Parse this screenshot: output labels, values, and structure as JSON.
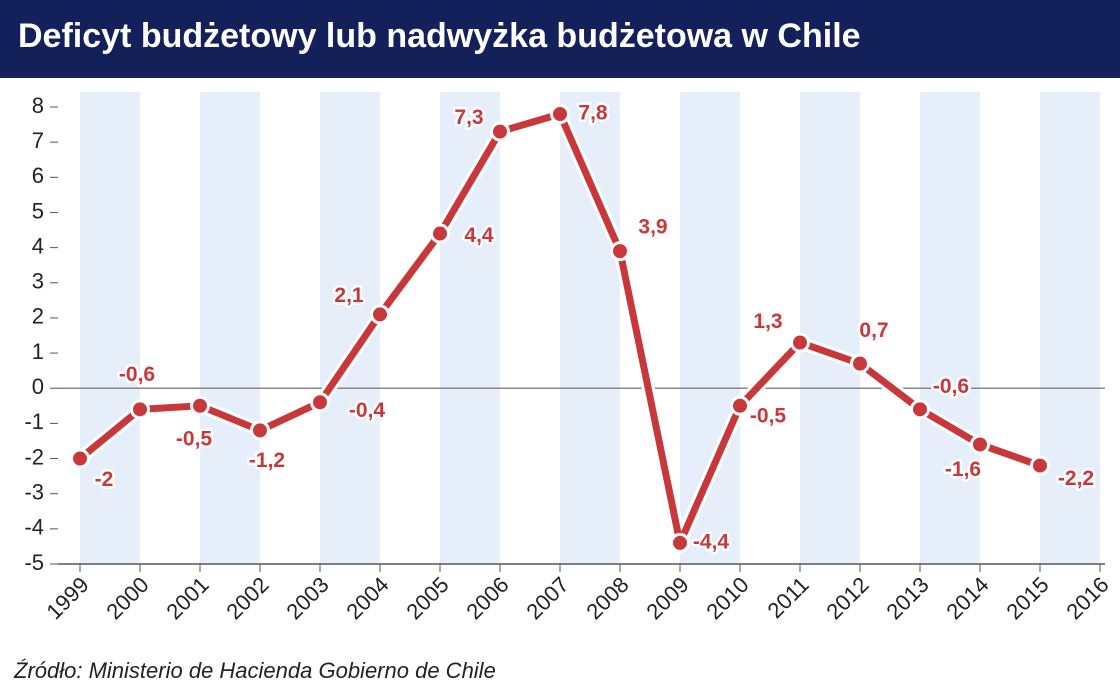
{
  "chart_data": {
    "type": "line",
    "title": "Deficyt budżetowy lub nadwyżka budżetowa w Chile",
    "source": "Źródło: Ministerio de Hacienda Gobierno de Chile",
    "categories": [
      "1999",
      "2000",
      "2001",
      "2002",
      "2003",
      "2004",
      "2005",
      "2006",
      "2007",
      "2008",
      "2009",
      "2010",
      "2011",
      "2012",
      "2013",
      "2014",
      "2015",
      "2016"
    ],
    "series": [
      {
        "name": "saldo",
        "color": "#c8383a",
        "values": [
          -2,
          -0.6,
          -0.5,
          -1.2,
          -0.4,
          2.1,
          4.4,
          7.3,
          7.8,
          3.9,
          -4.4,
          -0.5,
          1.3,
          0.7,
          -0.6,
          -1.6,
          -2.2,
          null
        ],
        "value_labels": [
          "-2",
          "-0,6",
          "-0,5",
          "-1,2",
          "-0,4",
          "2,1",
          "4,4",
          "7,3",
          "7,8",
          "3,9",
          "-4,4",
          "-0,5",
          "1,3",
          "0,7",
          "-0,6",
          "-1,6",
          "-2,2",
          null
        ]
      }
    ],
    "ylim": [
      -5,
      8
    ],
    "yticks": [
      -5,
      -4,
      -3,
      -2,
      -1,
      0,
      1,
      2,
      3,
      4,
      5,
      6,
      7,
      8
    ]
  }
}
